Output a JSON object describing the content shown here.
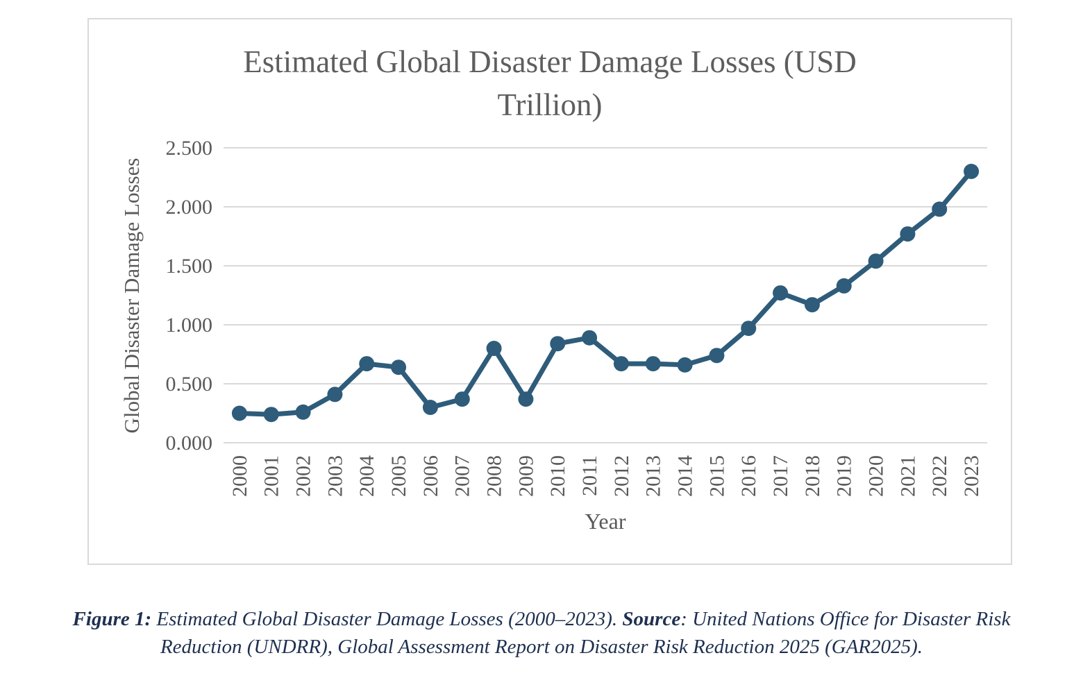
{
  "figure": {
    "caption": {
      "figure_label": "Figure 1:",
      "line1_text": " Estimated Global Disaster Damage Losses (2000–2023). ",
      "source_label": "Source",
      "line1_rest": ": United Nations Office for Disaster Risk",
      "line2": "Reduction (UNDRR), Global Assessment Report on Disaster Risk Reduction 2025 (GAR2025)."
    }
  },
  "chart_data": {
    "type": "line",
    "title": "Estimated Global Disaster Damage Losses (USD Trillion)",
    "title_lines": [
      "Estimated Global Disaster Damage Losses (USD",
      "Trillion)"
    ],
    "xlabel": "Year",
    "ylabel": "Global Disaster Damage Losses",
    "categories": [
      "2000",
      "2001",
      "2002",
      "2003",
      "2004",
      "2005",
      "2006",
      "2007",
      "2008",
      "2009",
      "2010",
      "2011",
      "2012",
      "2013",
      "2014",
      "2015",
      "2016",
      "2017",
      "2018",
      "2019",
      "2020",
      "2021",
      "2022",
      "2023"
    ],
    "values": [
      0.25,
      0.24,
      0.26,
      0.41,
      0.67,
      0.64,
      0.3,
      0.37,
      0.8,
      0.37,
      0.84,
      0.89,
      0.67,
      0.67,
      0.66,
      0.74,
      0.97,
      1.27,
      1.17,
      1.33,
      1.54,
      1.77,
      1.98,
      2.3
    ],
    "ylim": [
      0,
      2.5
    ],
    "ytick_step": 0.5,
    "ytick_labels": [
      "0.000",
      "0.500",
      "1.000",
      "1.500",
      "2.000",
      "2.500"
    ],
    "grid": true,
    "legend": "none",
    "line_color": "#2e5c7a",
    "marker": "circle",
    "text_color": "#595959",
    "gridline_color": "#d9d9d9"
  }
}
